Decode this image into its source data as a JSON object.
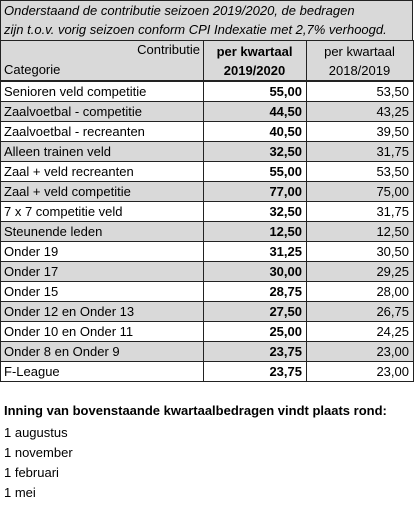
{
  "table": {
    "caption_lines": [
      "Onderstaand de contributie seizoen 2019/2020, de bedragen",
      "zijn t.o.v. vorig seizoen conform CPI Indexatie met 2,7% verhoogd."
    ],
    "header": {
      "contributie": "Contributie",
      "categorie": "Categorie",
      "current": [
        "per kwartaal",
        "2019/2020"
      ],
      "previous": [
        "per kwartaal",
        "2018/2019"
      ]
    },
    "rows": [
      [
        "Senioren veld competitie",
        "55,00",
        "53,50"
      ],
      [
        "Zaalvoetbal - competitie",
        "44,50",
        "43,25"
      ],
      [
        "Zaalvoetbal - recreanten",
        "40,50",
        "39,50"
      ],
      [
        "Alleen trainen veld",
        "32,50",
        "31,75"
      ],
      [
        "Zaal + veld recreanten",
        "55,00",
        "53,50"
      ],
      [
        "Zaal + veld competitie",
        "77,00",
        "75,00"
      ],
      [
        "7 x 7 competitie veld",
        "32,50",
        "31,75"
      ],
      [
        "Steunende leden",
        "12,50",
        "12,50"
      ],
      [
        "Onder 19",
        "31,25",
        "30,50"
      ],
      [
        "Onder 17",
        "30,00",
        "29,25"
      ],
      [
        "Onder 15",
        "28,75",
        "28,00"
      ],
      [
        "Onder 12 en Onder 13",
        "27,50",
        "26,75"
      ],
      [
        "Onder 10 en Onder 11",
        "25,00",
        "24,25"
      ],
      [
        "Onder 8 en Onder 9",
        "23,75",
        "23,00"
      ],
      [
        "F-League",
        "23,75",
        "23,00"
      ]
    ]
  },
  "footer": {
    "heading": "Inning van bovenstaande kwartaalbedragen vindt plaats rond:",
    "dates": [
      "1 augustus",
      "1 november",
      "1 februari",
      "1 mei"
    ]
  }
}
